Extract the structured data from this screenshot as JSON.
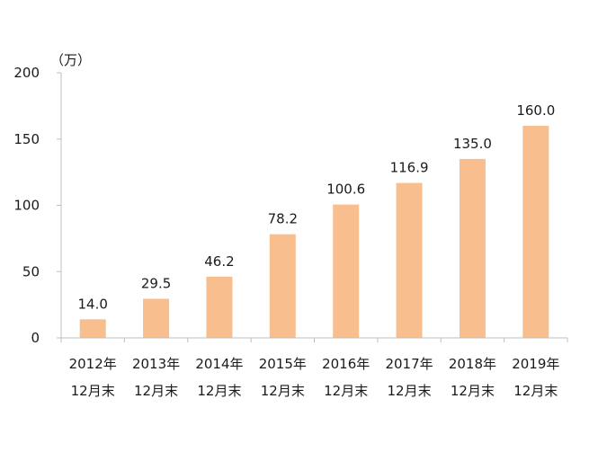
{
  "chart_data": {
    "type": "bar",
    "unit_label": "（万）",
    "categories": [
      [
        "2012年",
        "12月末"
      ],
      [
        "2013年",
        "12月末"
      ],
      [
        "2014年",
        "12月末"
      ],
      [
        "2015年",
        "12月末"
      ],
      [
        "2016年",
        "12月末"
      ],
      [
        "2017年",
        "12月末"
      ],
      [
        "2018年",
        "12月末"
      ],
      [
        "2019年",
        "12月末"
      ]
    ],
    "values": [
      14.0,
      29.5,
      46.2,
      78.2,
      100.6,
      116.9,
      135.0,
      160.0
    ],
    "value_labels": [
      "14.0",
      "29.5",
      "46.2",
      "78.2",
      "100.6",
      "116.9",
      "135.0",
      "160.0"
    ],
    "ylim": [
      0,
      200
    ],
    "yticks": [
      0,
      50,
      100,
      150,
      200
    ],
    "grid": false,
    "legend": "none",
    "colors": {
      "bar": "#F8BE8E",
      "axis": "#BFBFBF",
      "text": "#1A1A1A"
    }
  }
}
